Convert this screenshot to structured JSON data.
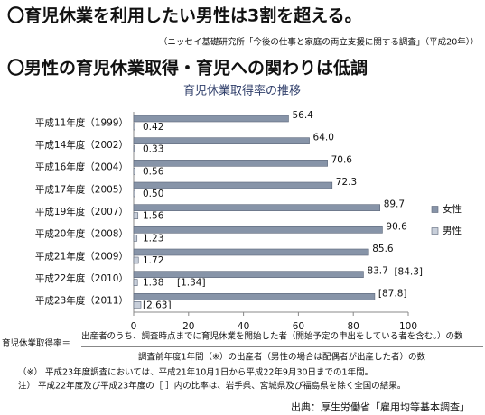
{
  "header": {
    "title": "〇育児休業を利用したい男性は3割を超える。",
    "subtitle": "（ニッセイ基礎研究所「今後の仕事と家庭の両立支援に関する調査」（平成20年））",
    "title2": "〇男性の育児休業取得・育児への関わりは低調"
  },
  "chart_data": {
    "type": "hbar",
    "title": "育児休業取得率の推移",
    "categories": [
      "平成11年度（1999）",
      "平成14年度（2002）",
      "平成16年度（2004）",
      "平成17年度（2005）",
      "平成19年度（2007）",
      "平成20年度（2008）",
      "平成21年度（2009）",
      "平成22年度（2010）",
      "平成23年度（2011）"
    ],
    "series": [
      {
        "name": "女性",
        "color": "#8794a8",
        "values": [
          56.4,
          64.0,
          70.6,
          72.3,
          89.7,
          90.6,
          85.6,
          83.7,
          87.8
        ],
        "value_labels": [
          "56.4",
          "64.0",
          "70.6",
          "72.3",
          "89.7",
          "90.6",
          "85.6",
          "83.7",
          "[87.8]"
        ]
      },
      {
        "name": "男性",
        "color": "#c8cfda",
        "values": [
          0.42,
          0.33,
          0.56,
          0.5,
          1.56,
          1.23,
          1.72,
          1.38,
          2.63
        ],
        "value_labels": [
          "0.42",
          "0.33",
          "0.56",
          "0.50",
          "1.56",
          "1.23",
          "1.72",
          "1.38",
          "[2.63]"
        ]
      }
    ],
    "annotations": [
      "[84.3]",
      "[1.34]"
    ],
    "xlim": [
      0,
      100
    ],
    "xticks": [
      0,
      20,
      40,
      60,
      80,
      100
    ],
    "grid": false
  },
  "formula": {
    "lhs": "育児休業取得率＝",
    "numerator": "出産者のうち、調査時点までに育児休業を開始した者（開始予定の申出をしている者を含む。）の数",
    "denominator": "調査前年度1年間（※）の出産者（男性の場合は配偶者が出産した者）の数"
  },
  "notes": [
    "（※） 平成23年度調査においては、平成21年10月1日から平成22年9月30日までの1年間。",
    "注） 平成22年度及び平成23年度の［ ］内の比率は、岩手県、宮城県及び福島県を除く全国の結果。"
  ],
  "source": "出典：厚生労働省「雇用均等基本調査」"
}
